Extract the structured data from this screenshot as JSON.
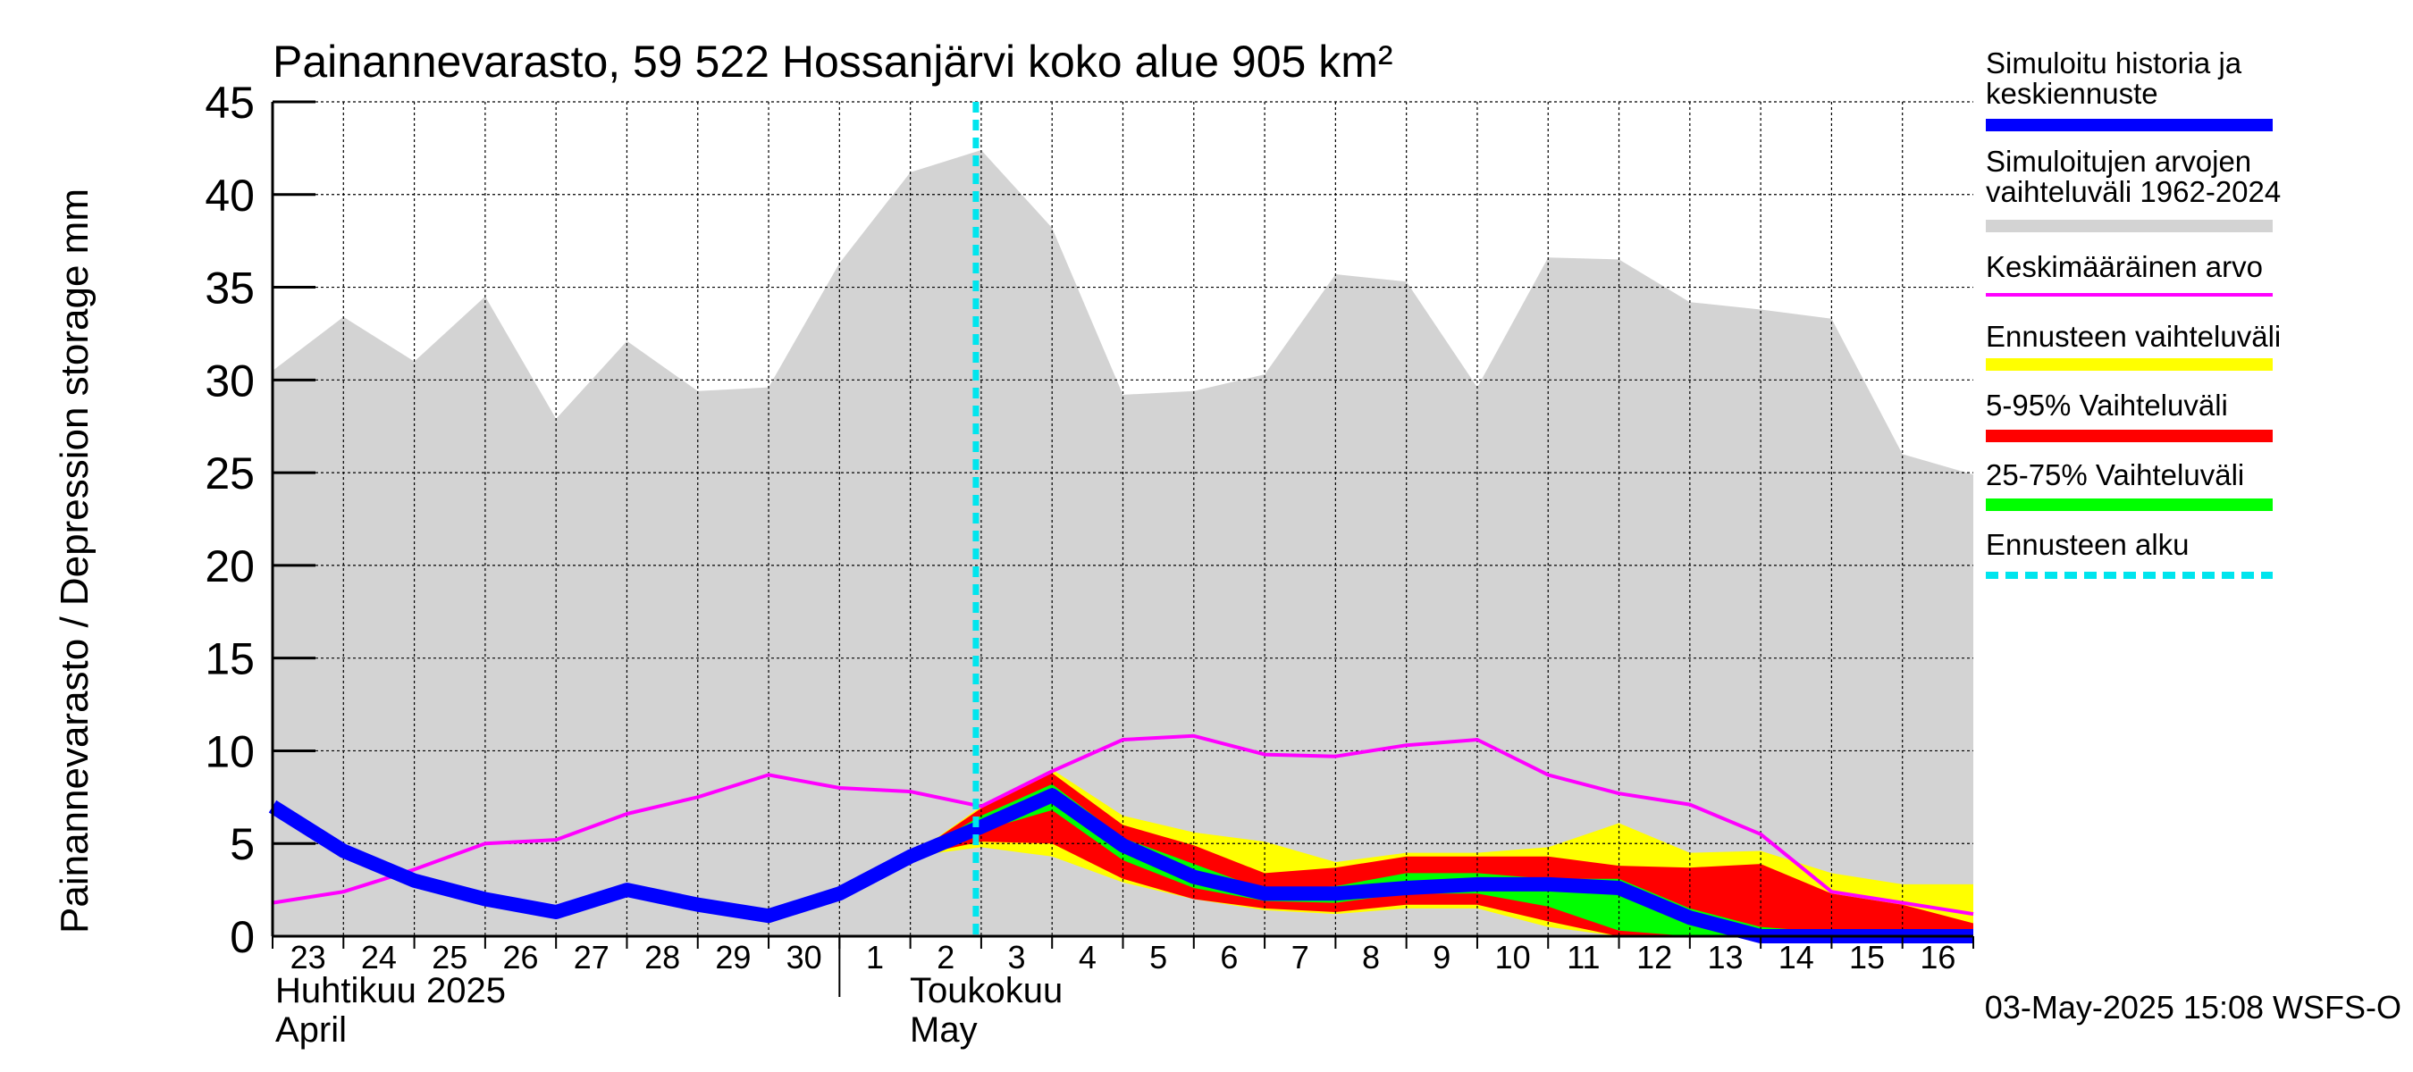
{
  "title": "Painannevarasto, 59 522 Hossanjärvi koko alue 905 km²",
  "ylabel": "Painannevarasto / Depression storage    mm",
  "footer": "03-May-2025 15:08 WSFS-O",
  "month_labels": [
    {
      "line1": "Huhtikuu  2025",
      "line2": "April"
    },
    {
      "line1": "Toukokuu",
      "line2": "May"
    }
  ],
  "legend": [
    {
      "label": "Simuloitu historia ja keskiennuste",
      "line1": "Simuloitu historia ja",
      "line2": "keskiennuste",
      "color": "#0000ff",
      "style": "thick"
    },
    {
      "label": "Simuloitujen arvojen vaihteluväli 1962-2024",
      "line1": "Simuloitujen arvojen",
      "line2": "vaihteluväli 1962-2024",
      "color": "#d3d3d3",
      "style": "band"
    },
    {
      "label": "Keskimääräinen arvo",
      "line1": "Keskimääräinen arvo",
      "line2": "",
      "color": "#ff00ff",
      "style": "thin"
    },
    {
      "label": "Ennusteen vaihteluväli",
      "line1": "Ennusteen vaihteluväli",
      "line2": "",
      "color": "#ffff00",
      "style": "band"
    },
    {
      "label": "5-95% Vaihteluväli",
      "line1": "5-95% Vaihteluväli",
      "line2": "",
      "color": "#ff0000",
      "style": "band"
    },
    {
      "label": "25-75% Vaihteluväli",
      "line1": "25-75% Vaihteluväli",
      "line2": "",
      "color": "#00ff00",
      "style": "band"
    },
    {
      "label": "Ennusteen alku",
      "line1": "Ennusteen alku",
      "line2": "",
      "color": "#00e5ee",
      "style": "dashed"
    }
  ],
  "chart_data": {
    "type": "area",
    "title": "Painannevarasto, 59 522 Hossanjärvi koko alue 905 km²",
    "ylabel": "Painannevarasto / Depression storage    mm",
    "ylim": [
      0,
      45
    ],
    "yticks": [
      0,
      5,
      10,
      15,
      20,
      25,
      30,
      35,
      40,
      45
    ],
    "xlim": [
      "2025-04-23",
      "2025-05-17"
    ],
    "x": [
      "2025-04-23",
      "2025-04-24",
      "2025-04-25",
      "2025-04-26",
      "2025-04-27",
      "2025-04-28",
      "2025-04-29",
      "2025-04-30",
      "2025-05-01",
      "2025-05-02",
      "2025-05-03",
      "2025-05-04",
      "2025-05-05",
      "2025-05-06",
      "2025-05-07",
      "2025-05-08",
      "2025-05-09",
      "2025-05-10",
      "2025-05-11",
      "2025-05-12",
      "2025-05-13",
      "2025-05-14",
      "2025-05-15",
      "2025-05-16",
      "2025-05-17"
    ],
    "x_tick_labels": [
      "23",
      "24",
      "25",
      "26",
      "27",
      "28",
      "29",
      "30",
      "1",
      "2",
      "3",
      "4",
      "5",
      "6",
      "7",
      "8",
      "9",
      "10",
      "11",
      "12",
      "13",
      "14",
      "15",
      "16"
    ],
    "grid": true,
    "forecast_start": "2025-05-03",
    "series": [
      {
        "name": "Simuloitujen arvojen vaihteluväli 1962-2024",
        "kind": "band",
        "color": "#d3d3d3",
        "lower": [
          0,
          0,
          0,
          0,
          0,
          0,
          0,
          0,
          0,
          0,
          0,
          0,
          0,
          0,
          0,
          0,
          0,
          0,
          0,
          0,
          0,
          0,
          0,
          0,
          0
        ],
        "upper": [
          30.5,
          33.4,
          31.0,
          34.5,
          27.9,
          32.1,
          29.4,
          29.6,
          36.3,
          41.2,
          42.4,
          38.2,
          29.2,
          29.4,
          30.3,
          35.7,
          35.3,
          29.6,
          36.6,
          36.5,
          34.2,
          33.8,
          33.3,
          26.0,
          24.9
        ]
      },
      {
        "name": "Ennusteen vaihteluväli",
        "kind": "band",
        "color": "#ffff00",
        "x_start": 9,
        "lower": [
          4.3,
          4.8,
          4.3,
          2.9,
          2.0,
          1.4,
          1.2,
          1.5,
          1.5,
          0.5,
          0,
          0,
          0,
          0,
          0,
          0
        ],
        "upper": [
          4.3,
          7.0,
          9.0,
          6.5,
          5.6,
          5.1,
          4.0,
          4.5,
          4.5,
          4.8,
          6.1,
          4.5,
          4.6,
          3.4,
          2.8,
          2.8
        ]
      },
      {
        "name": "5-95% Vaihteluväli",
        "kind": "band",
        "color": "#ff0000",
        "x_start": 9,
        "lower": [
          4.3,
          5.1,
          5.0,
          3.1,
          2.0,
          1.5,
          1.3,
          1.7,
          1.7,
          0.8,
          0,
          0,
          0,
          0,
          0,
          0
        ],
        "upper": [
          4.3,
          6.9,
          8.8,
          6.0,
          4.9,
          3.4,
          3.7,
          4.3,
          4.3,
          4.3,
          3.8,
          3.7,
          3.9,
          2.3,
          1.7,
          0.7
        ]
      },
      {
        "name": "25-75% Vaihteluväli",
        "kind": "band",
        "color": "#00ff00",
        "x_start": 9,
        "lower": [
          4.3,
          5.7,
          6.8,
          4.1,
          2.6,
          1.9,
          1.8,
          2.3,
          2.3,
          1.6,
          0.3,
          0,
          0,
          0,
          0,
          0
        ],
        "upper": [
          4.3,
          6.5,
          8.2,
          5.3,
          3.9,
          2.5,
          2.7,
          3.4,
          3.4,
          3.1,
          3.1,
          1.5,
          0.5,
          0.2,
          0,
          0
        ]
      },
      {
        "name": "Keskimääräinen arvo",
        "kind": "line",
        "color": "#ff00ff",
        "values": [
          1.8,
          2.4,
          3.6,
          5.0,
          5.2,
          6.6,
          7.5,
          8.7,
          8.0,
          7.8,
          7.0,
          8.9,
          10.6,
          10.8,
          9.8,
          9.7,
          10.3,
          10.6,
          8.7,
          7.7,
          7.1,
          5.5,
          2.4,
          1.8,
          1.2
        ]
      },
      {
        "name": "Simuloitu historia ja keskiennuste",
        "kind": "line",
        "color": "#0000ff",
        "values": [
          7.0,
          4.6,
          3.0,
          2.0,
          1.3,
          2.5,
          1.7,
          1.1,
          2.3,
          4.3,
          5.9,
          7.6,
          4.9,
          3.2,
          2.3,
          2.3,
          2.6,
          2.8,
          2.8,
          2.6,
          1.0,
          0,
          0,
          0,
          0
        ]
      }
    ]
  }
}
